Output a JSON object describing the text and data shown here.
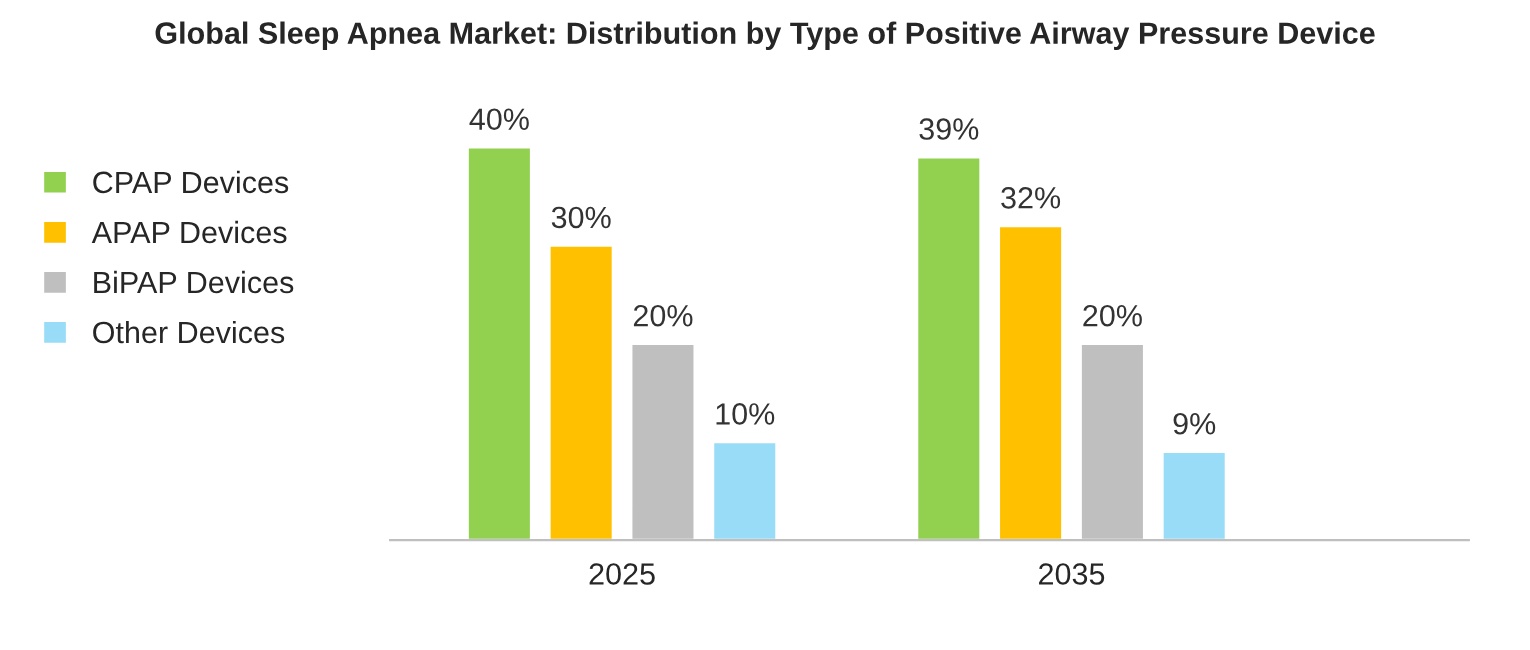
{
  "chart_data": {
    "type": "bar",
    "title": "Global Sleep Apnea Market: Distribution by Type of Positive Airway Pressure Device",
    "categories": [
      "2025",
      "2035"
    ],
    "series": [
      {
        "name": "CPAP Devices",
        "color": "#92d050",
        "values": [
          40,
          39
        ],
        "value_labels": [
          "40%",
          "39%"
        ]
      },
      {
        "name": "APAP Devices",
        "color": "#ffc000",
        "values": [
          30,
          32
        ],
        "value_labels": [
          "30%",
          "32%"
        ]
      },
      {
        "name": "BiPAP Devices",
        "color": "#bfbfbf",
        "values": [
          20,
          20
        ],
        "value_labels": [
          "20%",
          "20%"
        ]
      },
      {
        "name": "Other Devices",
        "color": "#99dcf7",
        "values": [
          10,
          9
        ],
        "value_labels": [
          "10%",
          "9%"
        ]
      }
    ],
    "legend": "left",
    "grid": false
  }
}
